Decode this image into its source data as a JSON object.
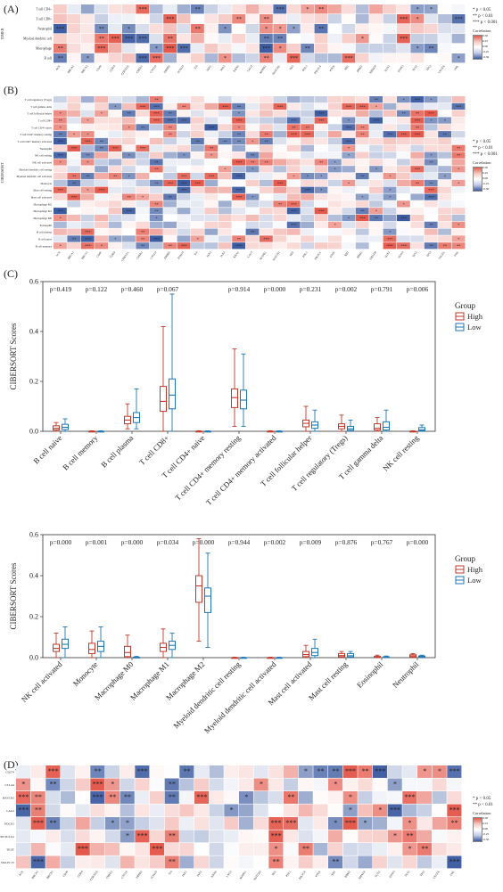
{
  "panels": {
    "a": {
      "label": "(A)"
    },
    "b": {
      "label": "(B)"
    },
    "c": {
      "label": "(C)"
    },
    "d": {
      "label": "(D)"
    }
  },
  "sig_legend": [
    "* p < 0.05",
    "** p < 0.01",
    "*** p < 0.001"
  ],
  "colorbar": {
    "title": "Correlation",
    "ticks": [
      "0.50",
      "0.25",
      "0.00",
      "-0.25",
      "-0.50"
    ]
  },
  "colors": {
    "high": "#c0392b",
    "low": "#1f77b4",
    "pos": "#e4574a",
    "neg": "#3b5aa0"
  },
  "group_legend": {
    "title": "Group",
    "high": "High",
    "low": "Low"
  },
  "chart_data": [
    {
      "id": "A",
      "type": "heatmap",
      "ylabel": "TIMER",
      "rows": [
        "T cell CD4+",
        "T cell CD8+",
        "Neutrophil",
        "Myeloid dendritic cell",
        "Macrophage",
        "B cell"
      ],
      "columns": [
        "ACE",
        "BRCA1",
        "BRCA2",
        "CD40",
        "CDK4",
        "CDKN2A",
        "CHEK1",
        "CXCL9",
        "ERBB2",
        "FOXO3",
        "IL6",
        "JAK1",
        "JAK2",
        "KRAS",
        "LAG3",
        "MAPK1",
        "NOTCH1",
        "PD1",
        "PDL1",
        "PIK3CA",
        "PTEN",
        "RB1",
        "RRM1",
        "SMAD4",
        "SOX2",
        "STAT3",
        "TET2",
        "TP53",
        "VEGFA",
        "VHL"
      ]
    },
    {
      "id": "B",
      "type": "heatmap",
      "ylabel": "CIBERSORT",
      "rows": [
        "T cell regulatory (Tregs)",
        "T cell gamma delta",
        "T cell follicular helper",
        "T cell CD8+",
        "T cell CD4+ naive",
        "T cell CD4+ memory resting",
        "T cell CD4+ memory activated",
        "Neutrophil",
        "NK cell resting",
        "NK cell activated",
        "Myeloid dendritic cell resting",
        "Myeloid dendritic cell activated",
        "Monocyte",
        "Mast cell resting",
        "Mast cell activated",
        "Macrophage M2",
        "Macrophage M1",
        "Macrophage M0",
        "Eosinophil",
        "B cell plasma",
        "B cell naive",
        "B cell memory"
      ],
      "columns": [
        "ACE",
        "BRCA1",
        "BRCA2",
        "CD40",
        "CDK4",
        "CDKN2A",
        "CHEK1",
        "CXCL9",
        "ERBB2",
        "FOXO3",
        "IL6",
        "JAK1",
        "JAK2",
        "KRAS",
        "LAG3",
        "MAPK1",
        "NOTCH1",
        "PD1",
        "PDL1",
        "PIK3CA",
        "PTEN",
        "RB1",
        "RRM1",
        "SMAD4",
        "SOX2",
        "STAT3",
        "TET2",
        "TP53",
        "VEGFA",
        "VHL"
      ]
    },
    {
      "id": "C1",
      "type": "box",
      "ylabel": "CIBERSORT Scores",
      "ylim": [
        0,
        0.6
      ],
      "yticks": [
        "0.0",
        "0.2",
        "0.4",
        "0.6"
      ],
      "categories": [
        "B cell naive",
        "B cell memory",
        "B cell plasma",
        "T cell CD8+",
        "T cell CD4+ naive",
        "T cell CD4+ memory resting",
        "T cell CD4+ memory activated",
        "T cell follicular helper",
        "T cell regulatory (Tregs)",
        "T cell gamma delta",
        "NK cell resting"
      ],
      "pvalues": [
        "p=0.419",
        "p=0.122",
        "p=0.460",
        "p=0.067",
        "",
        "p=0.914",
        "p=0.000",
        "p=0.231",
        "p=0.002",
        "p=0.791",
        "p=0.006"
      ],
      "series": [
        {
          "name": "High",
          "boxes": [
            [
              0.0,
              0.005,
              0.012,
              0.022,
              0.035
            ],
            [
              0,
              0,
              0,
              0,
              0.002
            ],
            [
              0.01,
              0.03,
              0.045,
              0.06,
              0.11
            ],
            [
              0.0,
              0.08,
              0.12,
              0.18,
              0.42
            ],
            [
              0,
              0,
              0,
              0,
              0.002
            ],
            [
              0.02,
              0.095,
              0.135,
              0.17,
              0.33
            ],
            [
              0,
              0,
              0,
              0,
              0.002
            ],
            [
              0.0,
              0.018,
              0.032,
              0.045,
              0.1
            ],
            [
              0.0,
              0.01,
              0.02,
              0.03,
              0.065
            ],
            [
              0.0,
              0.005,
              0.012,
              0.03,
              0.055
            ],
            [
              0,
              0,
              0,
              0,
              0.002
            ]
          ]
        },
        {
          "name": "Low",
          "boxes": [
            [
              0.0,
              0.007,
              0.016,
              0.028,
              0.05
            ],
            [
              0,
              0,
              0,
              0,
              0.002
            ],
            [
              0.01,
              0.035,
              0.055,
              0.075,
              0.17
            ],
            [
              0.0,
              0.09,
              0.145,
              0.21,
              0.55
            ],
            [
              0,
              0,
              0,
              0,
              0.002
            ],
            [
              0.02,
              0.09,
              0.125,
              0.165,
              0.31
            ],
            [
              0,
              0,
              0,
              0,
              0.002
            ],
            [
              0.0,
              0.012,
              0.025,
              0.038,
              0.085
            ],
            [
              0.0,
              0.004,
              0.01,
              0.02,
              0.045
            ],
            [
              0.0,
              0.005,
              0.016,
              0.038,
              0.085
            ],
            [
              0.0,
              0.002,
              0.006,
              0.015,
              0.025
            ]
          ]
        }
      ]
    },
    {
      "id": "C2",
      "type": "box",
      "ylabel": "CIBERSORT Scores",
      "ylim": [
        0,
        0.6
      ],
      "yticks": [
        "0.0",
        "0.2",
        "0.4",
        "0.6"
      ],
      "categories": [
        "NK cell activated",
        "Monocyte",
        "Macrophage M0",
        "Macrophage M1",
        "Macrophage M2",
        "Myeloid dendritic cell resting",
        "Myeloid dendritic cell activated",
        "Mast cell activated",
        "Mast cell resting",
        "Eosinophil",
        "Neutrophil"
      ],
      "pvalues": [
        "p=0.000",
        "p=0.001",
        "p=0.000",
        "p=0.034",
        "p=0.000",
        "p=0.944",
        "p=0.002",
        "p=0.009",
        "p=0.876",
        "p=0.767",
        "p=0.000"
      ],
      "series": [
        {
          "name": "High",
          "boxes": [
            [
              0.0,
              0.03,
              0.045,
              0.065,
              0.12
            ],
            [
              0.0,
              0.02,
              0.04,
              0.07,
              0.13
            ],
            [
              0.0,
              0.005,
              0.025,
              0.055,
              0.11
            ],
            [
              0.0,
              0.03,
              0.05,
              0.07,
              0.14
            ],
            [
              0.08,
              0.27,
              0.35,
              0.4,
              0.58
            ],
            [
              0,
              0,
              0,
              0,
              0.002
            ],
            [
              0,
              0,
              0,
              0,
              0.002
            ],
            [
              0.0,
              0.005,
              0.015,
              0.03,
              0.06
            ],
            [
              0.0,
              0.004,
              0.01,
              0.02,
              0.03
            ],
            [
              0.0,
              0.0,
              0.002,
              0.006,
              0.012
            ],
            [
              0.0,
              0.003,
              0.008,
              0.014,
              0.02
            ]
          ]
        },
        {
          "name": "Low",
          "boxes": [
            [
              0.0,
              0.045,
              0.065,
              0.09,
              0.15
            ],
            [
              0.0,
              0.03,
              0.055,
              0.08,
              0.15
            ],
            [
              0,
              0,
              0,
              0.002,
              0.006
            ],
            [
              0.0,
              0.04,
              0.06,
              0.08,
              0.12
            ],
            [
              0.05,
              0.22,
              0.3,
              0.34,
              0.51
            ],
            [
              0,
              0,
              0,
              0,
              0.002
            ],
            [
              0,
              0,
              0,
              0,
              0.002
            ],
            [
              0.0,
              0.01,
              0.025,
              0.045,
              0.09
            ],
            [
              0.0,
              0.003,
              0.009,
              0.02,
              0.03
            ],
            [
              0.0,
              0.0,
              0.002,
              0.004,
              0.008
            ],
            [
              0.0,
              0.002,
              0.005,
              0.008,
              0.012
            ]
          ]
        }
      ]
    },
    {
      "id": "D",
      "type": "heatmap",
      "rows": [
        "CD274",
        "CTLA4",
        "HAVCR2",
        "LAG3",
        "PDCD1",
        "PDCD1LG2",
        "TIGIT",
        "SIGLEC15"
      ],
      "columns": [
        "ACE",
        "BRCA1",
        "BRCA2",
        "CD40",
        "CDK4",
        "CDKN2A",
        "CHEK1",
        "CXCL9",
        "ERBB2",
        "FOXO3",
        "IL6",
        "JAK1",
        "JAK2",
        "KRAS",
        "LAG3",
        "MAPK1",
        "NOTCH1",
        "PD1",
        "PDL1",
        "PIK3CA",
        "PTEN",
        "RB1",
        "RRM1",
        "SMAD4",
        "SOX2",
        "STAT3",
        "TET2",
        "TP53",
        "VEGFA",
        "VHL"
      ]
    }
  ]
}
